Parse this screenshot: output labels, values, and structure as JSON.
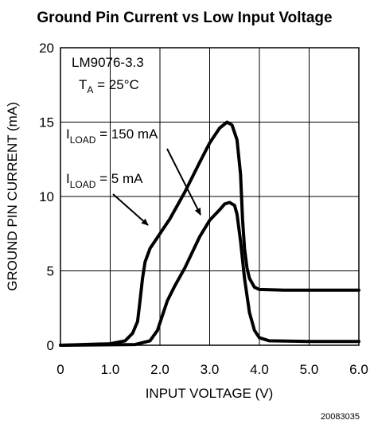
{
  "chart_data": {
    "type": "line",
    "title": "Ground Pin Current vs Low Input Voltage",
    "xlabel": "INPUT VOLTAGE (V)",
    "ylabel": "GROUND PIN CURRENT (mA)",
    "xlim": [
      0,
      6.0
    ],
    "ylim": [
      0,
      20
    ],
    "x_ticks": [
      "0",
      "1.0",
      "2.0",
      "3.0",
      "4.0",
      "5.0",
      "6.0"
    ],
    "y_ticks": [
      "0",
      "5",
      "10",
      "15",
      "20"
    ],
    "grid": true,
    "annotations": {
      "device": "LM9076-3.3",
      "temp_main": "T",
      "temp_sub": "A",
      "temp_rest": " = 25°C",
      "load_high_main": "I",
      "load_high_sub": "LOAD",
      "load_high_rest": " = 150 mA",
      "load_low_main": "I",
      "load_low_sub": "LOAD",
      "load_low_rest": " = 5 mA"
    },
    "figure_id": "20083035",
    "series": [
      {
        "id": "iload-150",
        "x": [
          0,
          1.0,
          1.3,
          1.45,
          1.55,
          1.6,
          1.65,
          1.7,
          1.8,
          2.0,
          2.2,
          2.5,
          2.8,
          3.0,
          3.2,
          3.35,
          3.45,
          3.55,
          3.62,
          3.66,
          3.7,
          3.75,
          3.8,
          3.9,
          4.0,
          4.5,
          5.0,
          6.0
        ],
        "y": [
          0,
          0.1,
          0.3,
          0.8,
          1.6,
          3.0,
          4.5,
          5.6,
          6.5,
          7.5,
          8.5,
          10.3,
          12.3,
          13.6,
          14.6,
          15.0,
          14.8,
          13.8,
          11.5,
          8.5,
          6.5,
          5.2,
          4.5,
          3.9,
          3.75,
          3.7,
          3.7,
          3.7
        ]
      },
      {
        "id": "iload-5",
        "x": [
          0,
          1.5,
          1.8,
          1.95,
          2.05,
          2.15,
          2.3,
          2.5,
          2.8,
          3.0,
          3.2,
          3.3,
          3.4,
          3.5,
          3.55,
          3.62,
          3.7,
          3.8,
          3.9,
          4.0,
          4.2,
          5.0,
          6.0
        ],
        "y": [
          0,
          0.05,
          0.3,
          1.0,
          2.0,
          3.0,
          4.0,
          5.2,
          7.3,
          8.4,
          9.1,
          9.5,
          9.6,
          9.4,
          8.8,
          7.0,
          4.5,
          2.2,
          1.0,
          0.5,
          0.3,
          0.25,
          0.25
        ]
      }
    ]
  }
}
